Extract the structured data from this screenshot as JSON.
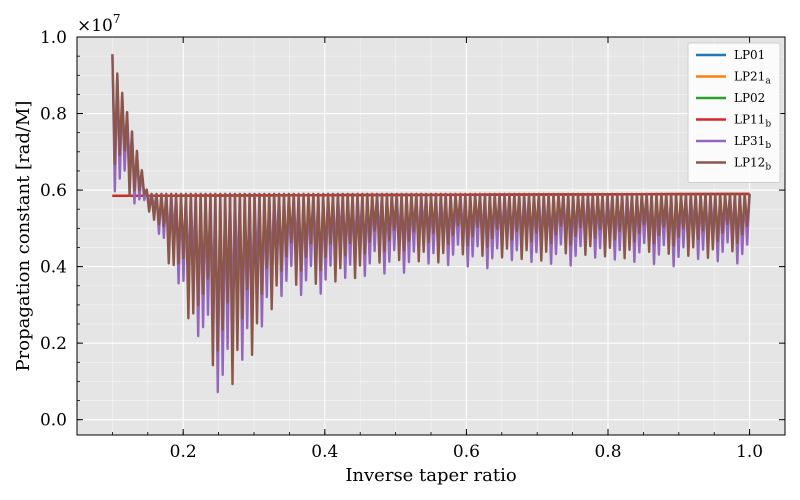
{
  "chart_data": {
    "type": "line",
    "xlabel": "Inverse taper ratio",
    "ylabel": "Propagation constant [rad/M]",
    "y_multiplier": "×10",
    "y_multiplier_exp": "7",
    "xlim": [
      0.05,
      1.05
    ],
    "ylim": [
      -0.04,
      1.0
    ],
    "x_ticks": [
      0.2,
      0.4,
      0.6,
      0.8,
      1.0
    ],
    "x_tick_labels": [
      "0.2",
      "0.4",
      "0.6",
      "0.8",
      "1.0"
    ],
    "y_ticks": [
      0.0,
      0.2,
      0.4,
      0.6,
      0.8,
      1.0
    ],
    "y_tick_labels": [
      "0.0",
      "0.2",
      "0.4",
      "0.6",
      "0.8",
      "1.0"
    ],
    "grid": true,
    "legend_position": "top-right",
    "series": [
      {
        "name": "LP01",
        "label": "LP01",
        "sub": "",
        "color": "#1f77b4",
        "x": [
          0.1,
          1.0
        ],
        "values": [
          0.585,
          0.59
        ]
      },
      {
        "name": "LP21a",
        "label": "LP21",
        "sub": "a",
        "color": "#ff7f0e",
        "x": [
          0.1,
          1.0
        ],
        "values": [
          0.585,
          0.59
        ]
      },
      {
        "name": "LP02",
        "label": "LP02",
        "sub": "",
        "color": "#2ca02c",
        "x": [
          0.1,
          1.0
        ],
        "values": [
          0.585,
          0.59
        ]
      },
      {
        "name": "LP11b",
        "label": "LP11",
        "sub": "b",
        "color": "#d62728",
        "x": [
          0.1,
          1.0
        ],
        "values": [
          0.585,
          0.59
        ]
      },
      {
        "name": "LP31b",
        "label": "LP31",
        "sub": "b",
        "color": "#9467bd",
        "envelope": {
          "x": [
            0.1,
            0.15,
            0.2,
            0.25,
            0.26,
            0.3,
            0.33,
            0.4,
            0.5,
            0.6,
            0.8,
            1.0
          ],
          "low": [
            0.58,
            0.55,
            0.3,
            0.05,
            0.01,
            0.15,
            0.3,
            0.33,
            0.38,
            0.39,
            0.4,
            0.4
          ],
          "high": [
            0.955,
            0.59,
            0.59,
            0.59,
            0.59,
            0.59,
            0.59,
            0.59,
            0.59,
            0.59,
            0.59,
            0.59
          ]
        }
      },
      {
        "name": "LP12b",
        "label": "LP12",
        "sub": "b",
        "color": "#8c564b",
        "envelope": {
          "x": [
            0.1,
            0.15,
            0.2,
            0.25,
            0.26,
            0.3,
            0.33,
            0.4,
            0.5,
            0.6,
            0.8,
            1.0
          ],
          "low": [
            0.58,
            0.55,
            0.3,
            0.05,
            0.02,
            0.16,
            0.31,
            0.34,
            0.4,
            0.41,
            0.42,
            0.42
          ],
          "high": [
            0.955,
            0.59,
            0.59,
            0.59,
            0.59,
            0.59,
            0.59,
            0.59,
            0.59,
            0.59,
            0.59,
            0.59
          ]
        }
      }
    ]
  }
}
